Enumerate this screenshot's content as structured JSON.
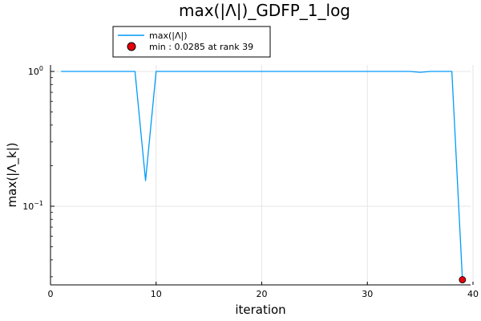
{
  "chart_data": {
    "type": "line",
    "title": "max(|Λ|)_GDFP_1_log",
    "xlabel": "iteration",
    "ylabel": "max(|Λ_k|)",
    "xlim": [
      0,
      40
    ],
    "ylim": [
      0.025,
      1.1
    ],
    "yscale": "log",
    "grid": true,
    "legend_position": "top-left outside",
    "xticks": [
      0,
      10,
      20,
      30,
      40
    ],
    "xtick_labels": [
      "0",
      "10",
      "20",
      "30",
      "40"
    ],
    "yticks": [
      1,
      0.1
    ],
    "ytick_labels": [
      {
        "base": "10",
        "exp": "0"
      },
      {
        "base": "10",
        "exp": "−1"
      }
    ],
    "series": [
      {
        "name": "max(|Λ|)",
        "color": "#009AFA",
        "x": [
          1,
          2,
          3,
          4,
          5,
          6,
          7,
          8,
          9,
          10,
          11,
          12,
          13,
          14,
          15,
          16,
          17,
          18,
          19,
          20,
          21,
          22,
          23,
          24,
          25,
          26,
          27,
          28,
          29,
          30,
          31,
          32,
          33,
          34,
          35,
          36,
          37,
          38,
          39
        ],
        "y": [
          1,
          1,
          1,
          1,
          1,
          1,
          1,
          1,
          0.155,
          1,
          1,
          1,
          1,
          1,
          1,
          1,
          1,
          1,
          1,
          1,
          1,
          1,
          1,
          1,
          1,
          1,
          1,
          1,
          1,
          1,
          1,
          1,
          1,
          1,
          0.985,
          1,
          1,
          1,
          0.0285
        ]
      }
    ],
    "markers": [
      {
        "label": "min : 0.0285 at rank 39",
        "x": 39,
        "y": 0.0285,
        "color": "#E8000B"
      }
    ]
  }
}
